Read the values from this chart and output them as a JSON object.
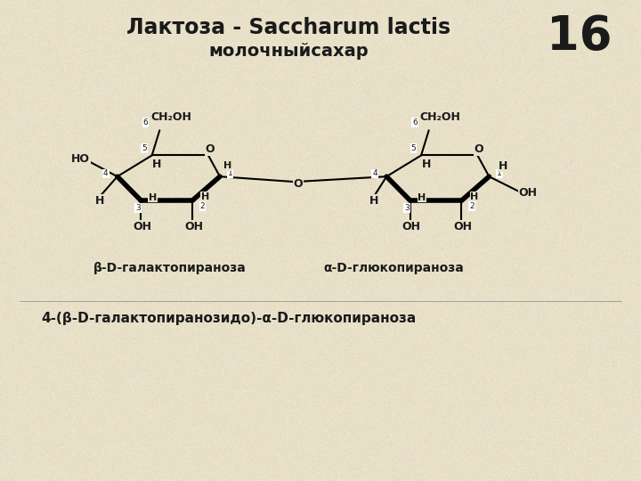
{
  "title_line1": "Лактоза - Saccharum lactis",
  "title_line2": "молочныйсахар",
  "slide_number": "16",
  "label_galactose": "β-D-галактопираноза",
  "label_glucose": "α-D-глюкопираноза",
  "label_full": "4-(β-D-галактопиранозидо)-α-D-глюкопираноза",
  "bg_color": "#e8e0c8",
  "text_color": "#1a1a1a",
  "title_fontsize": 17,
  "subtitle_fontsize": 14,
  "number_fontsize": 38,
  "label_fontsize": 10,
  "full_label_fontsize": 11
}
